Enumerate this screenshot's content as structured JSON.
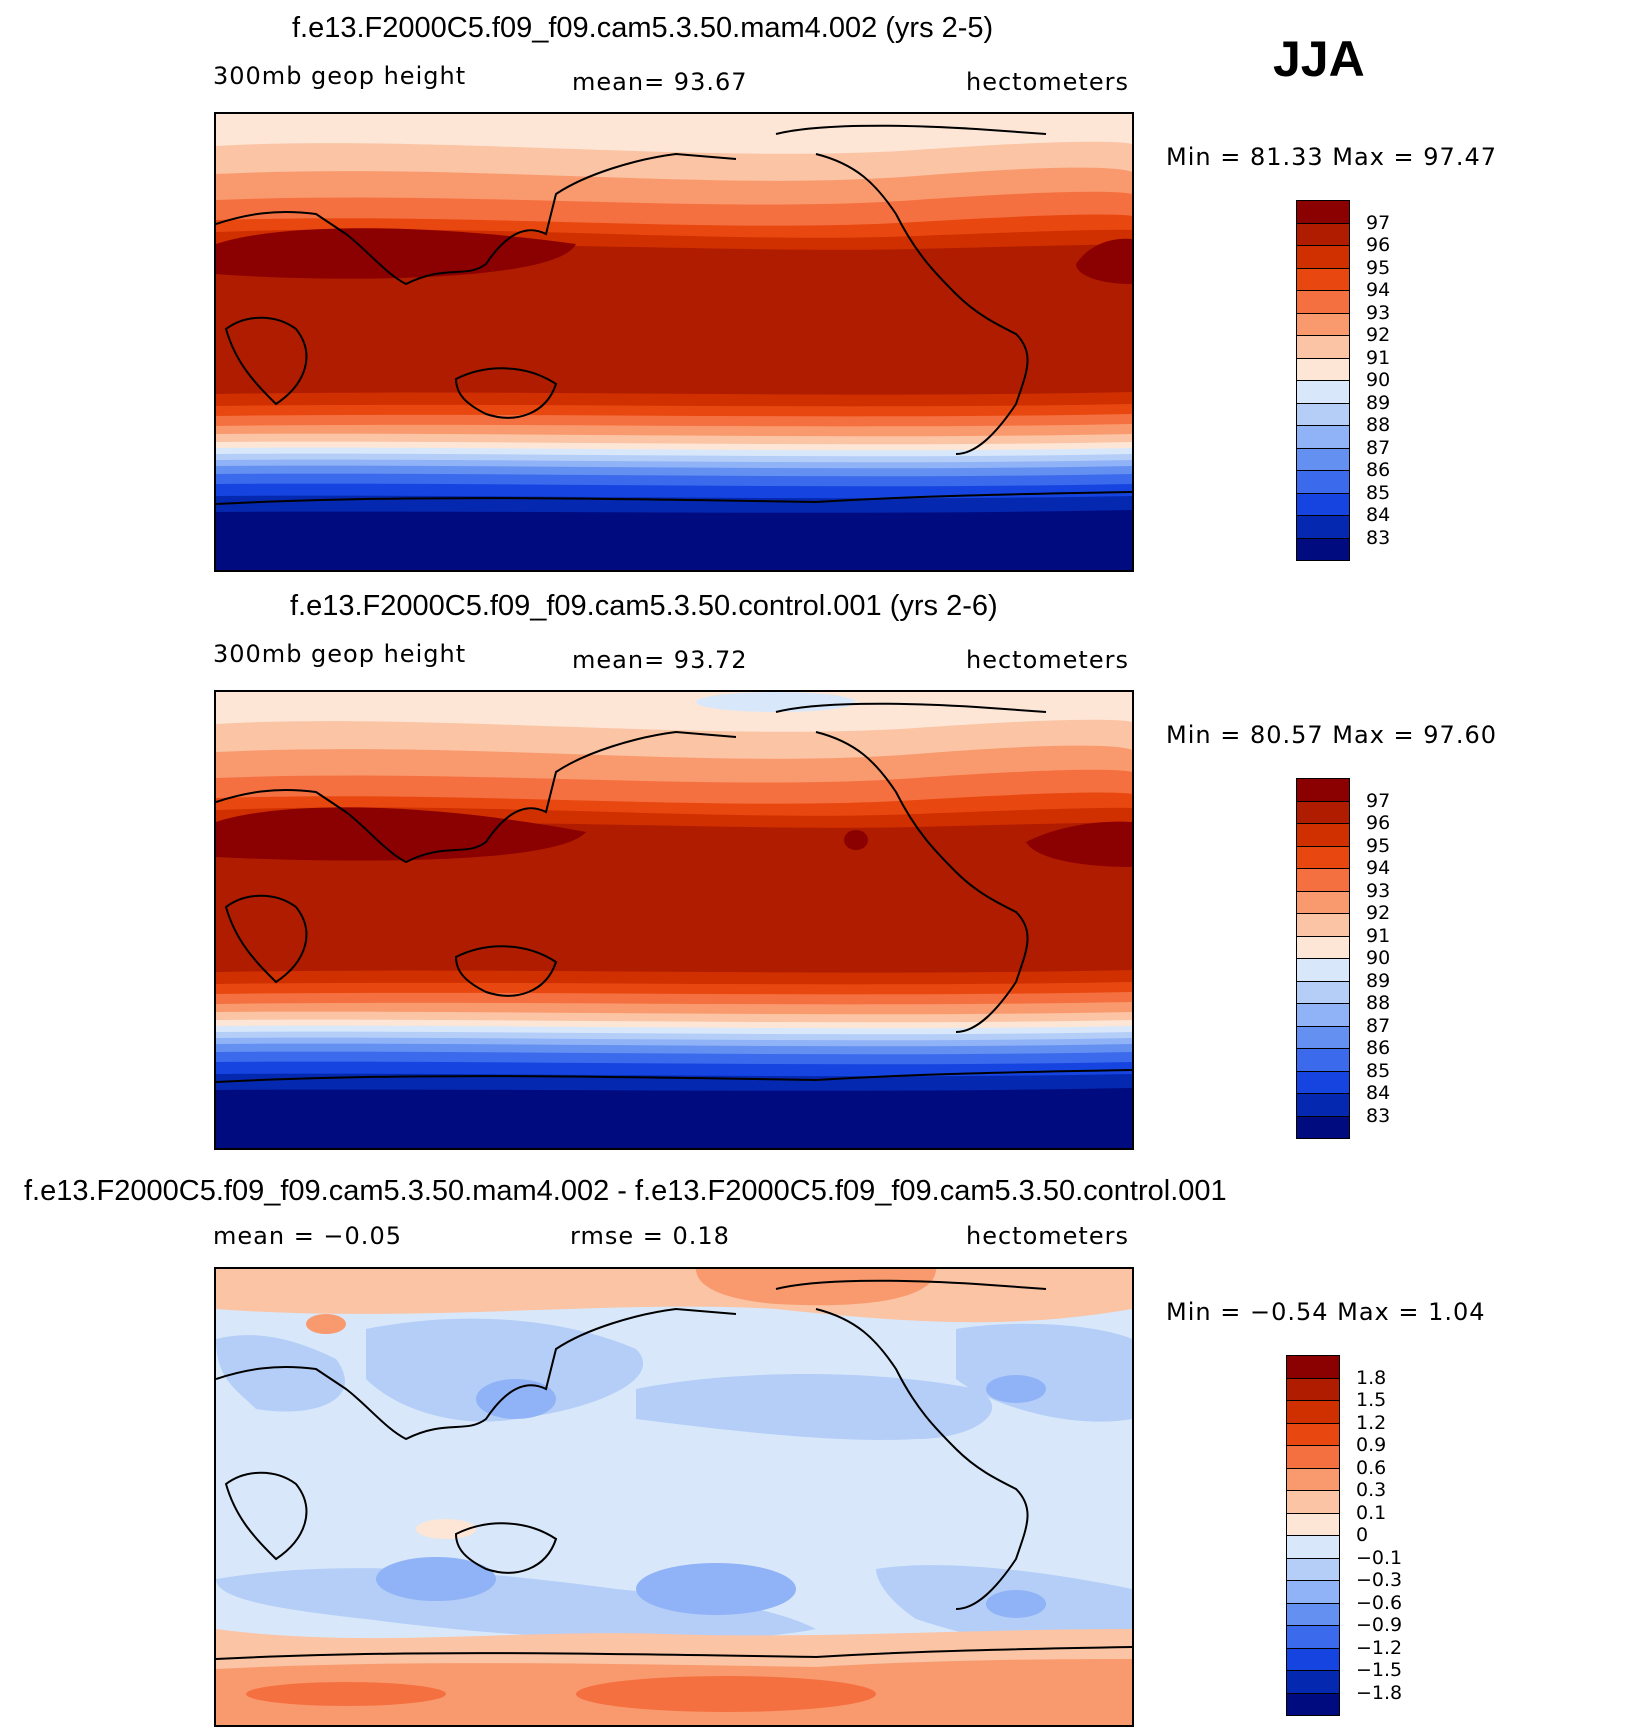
{
  "season": "JJA",
  "panels": [
    {
      "id": "mam4",
      "title": "f.e13.F2000C5.f09_f09.cam5.3.50.mam4.002 (yrs 2-5)",
      "variable": "300mb geop height",
      "stat_text": "mean=   93.67",
      "units": "hectometers",
      "minmax_text": "Min =   81.33 Max =   97.47",
      "colorbar": {
        "labels": [
          "97",
          "96",
          "95",
          "94",
          "93",
          "92",
          "91",
          "90",
          "89",
          "88",
          "87",
          "86",
          "85",
          "84",
          "83"
        ],
        "colors": [
          "#8b0000",
          "#b01c00",
          "#d03000",
          "#e84810",
          "#f57040",
          "#f99a6e",
          "#fbc4a4",
          "#fde6d6",
          "#d8e8fa",
          "#b4cef8",
          "#90b2f6",
          "#6490f2",
          "#3c6aec",
          "#1644e0",
          "#0428b0",
          "#000b80"
        ]
      }
    },
    {
      "id": "control",
      "title": "f.e13.F2000C5.f09_f09.cam5.3.50.control.001 (yrs 2-6)",
      "variable": "300mb geop height",
      "stat_text": "mean=   93.72",
      "units": "hectometers",
      "minmax_text": "Min =   80.57 Max =   97.60",
      "colorbar": {
        "labels": [
          "97",
          "96",
          "95",
          "94",
          "93",
          "92",
          "91",
          "90",
          "89",
          "88",
          "87",
          "86",
          "85",
          "84",
          "83"
        ],
        "colors": [
          "#8b0000",
          "#b01c00",
          "#d03000",
          "#e84810",
          "#f57040",
          "#f99a6e",
          "#fbc4a4",
          "#fde6d6",
          "#d8e8fa",
          "#b4cef8",
          "#90b2f6",
          "#6490f2",
          "#3c6aec",
          "#1644e0",
          "#0428b0",
          "#000b80"
        ]
      }
    },
    {
      "id": "diff",
      "title": "f.e13.F2000C5.f09_f09.cam5.3.50.mam4.002 - f.e13.F2000C5.f09_f09.cam5.3.50.control.001",
      "variable": "",
      "mean_text": "mean =   −0.05",
      "stat_text": "rmse =    0.18",
      "units": "hectometers",
      "minmax_text": "Min =   −0.54 Max =    1.04",
      "colorbar": {
        "labels": [
          "1.8",
          "1.5",
          "1.2",
          "0.9",
          "0.6",
          "0.3",
          "0.1",
          "0",
          "−0.1",
          "−0.3",
          "−0.6",
          "−0.9",
          "−1.2",
          "−1.5",
          "−1.8"
        ],
        "colors": [
          "#8b0000",
          "#b01c00",
          "#d03000",
          "#e84810",
          "#f57040",
          "#f99a6e",
          "#fbc4a4",
          "#fde6d6",
          "#d8e8fa",
          "#b4cef8",
          "#90b2f6",
          "#6490f2",
          "#3c6aec",
          "#1644e0",
          "#0428b0",
          "#000b80"
        ]
      }
    }
  ]
}
